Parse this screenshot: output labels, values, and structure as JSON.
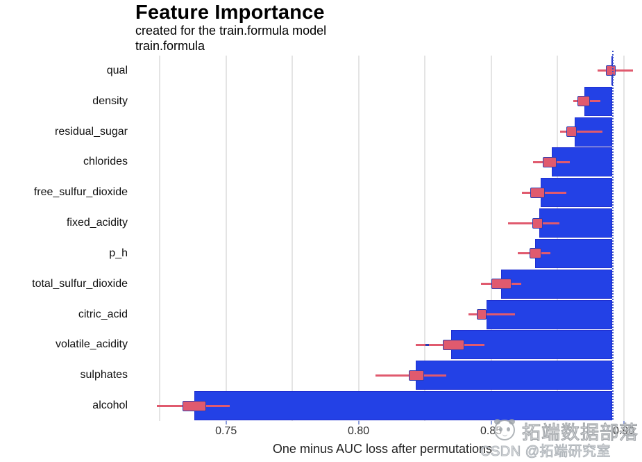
{
  "header": {
    "title": "Feature Importance",
    "subtitle": "created for the train.formula model",
    "facet_label": "train.formula"
  },
  "chart_data": {
    "type": "bar",
    "subtype": "permutation-feature-importance-with-boxplots",
    "orientation": "horizontal",
    "title": "Feature Importance",
    "subtitle": "created for the train.formula model",
    "facet": "train.formula",
    "xlabel": "One minus AUC loss after permutations",
    "ylabel": "",
    "xlim": [
      0.715,
      0.903
    ],
    "x_ticks": [
      0.75,
      0.8,
      0.85,
      0.9
    ],
    "x_tick_labels": [
      "0.75",
      "0.80",
      "0.85",
      "0.90"
    ],
    "minor_grid_step": 0.025,
    "grid": "vertical-only",
    "legend": "none",
    "full_model_loss": 0.8958,
    "bars_extend_to_full_model_loss": true,
    "categories": [
      "qual",
      "density",
      "residual_sugar",
      "chlorides",
      "free_sulfur_dioxide",
      "fixed_acidity",
      "p_h",
      "total_sulfur_dioxide",
      "citric_acid",
      "volatile_acidity",
      "sulphates",
      "alcohol"
    ],
    "values": [
      0.8953,
      0.8851,
      0.8814,
      0.8728,
      0.8686,
      0.8681,
      0.8665,
      0.8537,
      0.8482,
      0.8348,
      0.8215,
      0.738
    ],
    "features": [
      {
        "name": "qual",
        "dropout_loss": 0.8953,
        "box": {
          "min": 0.8903,
          "q1": 0.8932,
          "q3": 0.8969,
          "max": 0.9034
        }
      },
      {
        "name": "density",
        "dropout_loss": 0.8851,
        "box": {
          "min": 0.8809,
          "q1": 0.8827,
          "q3": 0.8872,
          "max": 0.8911
        }
      },
      {
        "name": "residual_sugar",
        "dropout_loss": 0.8814,
        "box": {
          "min": 0.8759,
          "q1": 0.8785,
          "q3": 0.8822,
          "max": 0.8919
        }
      },
      {
        "name": "chlorides",
        "dropout_loss": 0.8728,
        "box": {
          "min": 0.8657,
          "q1": 0.8696,
          "q3": 0.8746,
          "max": 0.8798
        }
      },
      {
        "name": "free_sulfur_dioxide",
        "dropout_loss": 0.8686,
        "box": {
          "min": 0.8615,
          "q1": 0.8649,
          "q3": 0.8704,
          "max": 0.8785
        }
      },
      {
        "name": "fixed_acidity",
        "dropout_loss": 0.8681,
        "box": {
          "min": 0.8563,
          "q1": 0.8655,
          "q3": 0.8694,
          "max": 0.8757
        }
      },
      {
        "name": "p_h",
        "dropout_loss": 0.8665,
        "box": {
          "min": 0.86,
          "q1": 0.8644,
          "q3": 0.8689,
          "max": 0.8723
        }
      },
      {
        "name": "total_sulfur_dioxide",
        "dropout_loss": 0.8537,
        "box": {
          "min": 0.8463,
          "q1": 0.85,
          "q3": 0.8576,
          "max": 0.8613
        }
      },
      {
        "name": "citric_acid",
        "dropout_loss": 0.8482,
        "box": {
          "min": 0.8414,
          "q1": 0.8445,
          "q3": 0.8482,
          "max": 0.8589
        }
      },
      {
        "name": "volatile_acidity",
        "dropout_loss": 0.8348,
        "box": {
          "min": 0.8215,
          "q1": 0.8317,
          "q3": 0.8398,
          "max": 0.8474,
          "outliers": [
            0.8257
          ]
        }
      },
      {
        "name": "sulphates",
        "dropout_loss": 0.8215,
        "box": {
          "min": 0.8065,
          "q1": 0.8189,
          "q3": 0.8246,
          "max": 0.833
        }
      },
      {
        "name": "alcohol",
        "dropout_loss": 0.738,
        "box": {
          "min": 0.724,
          "q1": 0.7335,
          "q3": 0.7424,
          "max": 0.7513
        }
      }
    ]
  },
  "watermark": {
    "brand_text": "拓端数据部落",
    "credit_text": "CSDN @拓端研究室",
    "logo": "panda-logo"
  },
  "colors": {
    "bar": "#2341e6",
    "bar_border": "#1f2fd0",
    "box_fill": "#e05a6e",
    "box_border": "#2d3cb0",
    "whisker": "#e05a6e",
    "dotted_line": "#3a50c8",
    "gridline": "#e4e4e4",
    "tick_label_text": "#303030",
    "text": "#000000",
    "watermark_gray": "#969ca2",
    "background": "#ffffff"
  }
}
